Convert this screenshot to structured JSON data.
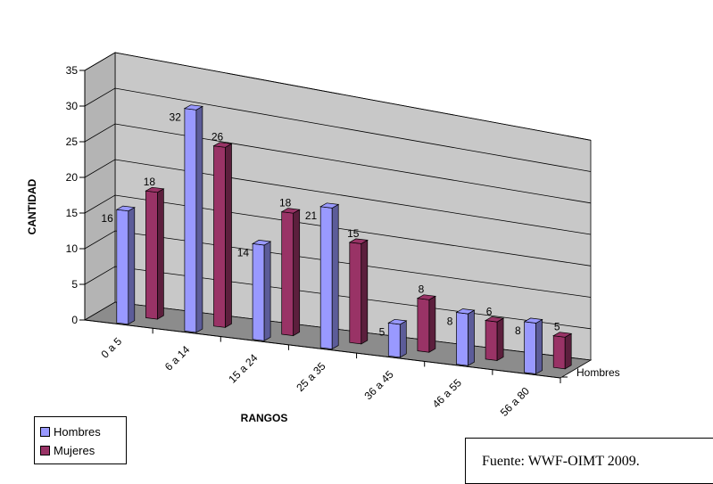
{
  "chart_data": {
    "type": "bar",
    "xlabel": "RANGOS",
    "ylabel": "CANTIDAD",
    "ylim": [
      0,
      35
    ],
    "yticks": [
      0,
      5,
      10,
      15,
      20,
      25,
      30,
      35
    ],
    "grid": true,
    "legend_position": "bottom-left",
    "depth_axis_label": "Hombres",
    "categories": [
      "0 a 5",
      "6 a 14",
      "15 a 24",
      "25 a 35",
      "36 a 45",
      "46 a 55",
      "56 a 80"
    ],
    "series": [
      {
        "name": "Hombres",
        "color": "#9999ff",
        "values": [
          16,
          32,
          14,
          21,
          5,
          8,
          8
        ]
      },
      {
        "name": "Mujeres",
        "color": "#993366",
        "values": [
          18,
          26,
          18,
          15,
          8,
          6,
          5
        ]
      }
    ]
  },
  "legend": {
    "hombres": "Hombres",
    "mujeres": "Mujeres"
  },
  "source": {
    "text": "Fuente:  WWF-OIMT 2009."
  }
}
